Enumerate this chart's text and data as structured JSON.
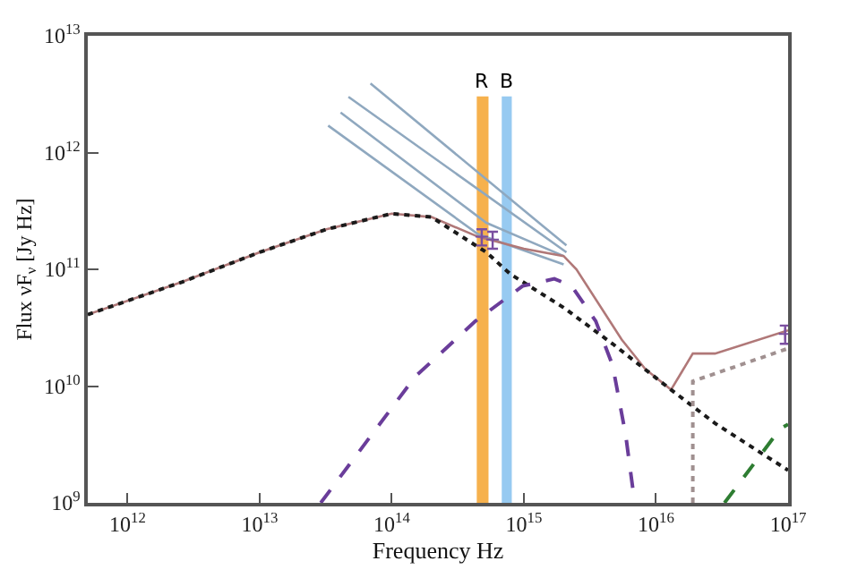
{
  "chart_data": {
    "type": "line",
    "xlabel": "Frequency Hz",
    "ylabel": "Flux νF$_{ν}$ [Jy Hz]",
    "log": "xy",
    "xlim": [
      500000000000.0,
      1e+17
    ],
    "ylim": [
      1000000000.0,
      10000000000000.0
    ],
    "xticks": [
      {
        "value": 1000000000000.0,
        "label": "10$^{12}$"
      },
      {
        "value": 10000000000000.0,
        "label": "10$^{13}$"
      },
      {
        "value": 100000000000000.0,
        "label": "10$^{14}$"
      },
      {
        "value": 1000000000000000.0,
        "label": "10$^{15}$"
      },
      {
        "value": 1e+16,
        "label": "10$^{16}$"
      },
      {
        "value": 1e+17,
        "label": "10$^{17}$"
      }
    ],
    "yticks": [
      {
        "value": 1000000000.0,
        "label": "10$^{9}$"
      },
      {
        "value": 10000000000.0,
        "label": "10$^{10}$"
      },
      {
        "value": 100000000000.0,
        "label": "10$^{11}$"
      },
      {
        "value": 1000000000000.0,
        "label": "10$^{12}$"
      },
      {
        "value": 10000000000000.0,
        "label": "10$^{13}$"
      }
    ],
    "bands": [
      {
        "axis": "x",
        "from": 440000000000000.0,
        "to": 540000000000000.0,
        "label": "R",
        "color": "#f5a83a"
      },
      {
        "axis": "x",
        "from": 680000000000000.0,
        "to": 810000000000000.0,
        "label": "B",
        "color": "#8cc4f0"
      }
    ],
    "series": [
      {
        "color": "#8fa8bf",
        "line_style": "solid",
        "x": [
          69000000000000.0,
          2100000000000000.0
        ],
        "values": [
          3900000000000.0,
          160000000000.0
        ]
      },
      {
        "color": "#8fa8bf",
        "line_style": "solid",
        "x": [
          47000000000000.0,
          2100000000000000.0
        ],
        "values": [
          3000000000000.0,
          140000000000.0
        ]
      },
      {
        "color": "#8fa8bf",
        "line_style": "solid",
        "x": [
          41000000000000.0,
          520000000000000.0,
          2000000000000000.0
        ],
        "values": [
          2200000000000.0,
          250000000000.0,
          130000000000.0
        ]
      },
      {
        "color": "#8fa8bf",
        "line_style": "solid",
        "x": [
          33000000000000.0,
          450000000000000.0,
          2000000000000000.0
        ],
        "values": [
          1700000000000.0,
          200000000000.0,
          110000000000.0
        ]
      },
      {
        "color": "#b07878",
        "line_style": "solid",
        "x": [
          500000000000.0,
          2600000000000.0,
          10000000000000.0,
          32000000000000.0,
          100000000000000.0,
          200000000000000.0,
          450000000000000.0,
          1000000000000000.0,
          2000000000000000.0,
          2500000000000000.0,
          5500000000000000.0,
          8300000000000000.0,
          1.3e+16,
          1.9e+16,
          2.8e+16,
          1e+17
        ],
        "values": [
          41000000000.0,
          78000000000.0,
          140000000000.0,
          220000000000.0,
          300000000000.0,
          280000000000.0,
          190000000000.0,
          150000000000.0,
          130000000000.0,
          100000000000.0,
          25000000000.0,
          14000000000.0,
          9300000000.0,
          19000000000.0,
          19000000000.0,
          30000000000.0
        ]
      },
      {
        "color": "#1a1a1a",
        "line_style": "dotted",
        "x": [
          500000000000.0,
          2600000000000.0,
          10000000000000.0,
          32000000000000.0,
          100000000000000.0,
          200000000000000.0,
          520000000000000.0,
          790000000000000.0,
          2000000000000000.0,
          4700000000000000.0,
          1.3e+16,
          2.8e+16,
          1e+17
        ],
        "values": [
          41000000000.0,
          78000000000.0,
          140000000000.0,
          220000000000.0,
          300000000000.0,
          280000000000.0,
          140000000000.0,
          91000000000.0,
          47000000000.0,
          23000000000.0,
          9300000000.0,
          4800000000.0,
          1900000000.0
        ]
      },
      {
        "color": "#6a3d9a",
        "line_style": "dashed",
        "x": [
          29000000000000.0,
          150000000000000.0,
          430000000000000.0,
          980000000000000.0,
          1700000000000000.0,
          2300000000000000.0,
          3500000000000000.0,
          4700000000000000.0,
          5900000000000000.0,
          6900000000000000.0
        ],
        "values": [
          1000000000.0,
          12000000000.0,
          36000000000.0,
          72000000000.0,
          83000000000.0,
          72000000000.0,
          36000000000.0,
          15000000000.0,
          3800000000.0,
          1000000000.0
        ]
      },
      {
        "color": "#2e7d32",
        "line_style": "dashed",
        "x": [
          3.3e+16,
          8.7e+16,
          1e+17
        ],
        "values": [
          1000000000.0,
          4300000000.0,
          4700000000.0
        ]
      },
      {
        "color": "#a09090",
        "line_style": "dotted",
        "x": [
          1.9e+16,
          1.9e+16,
          1e+17
        ],
        "values": [
          1000000000.0,
          11000000000.0,
          21000000000.0
        ]
      },
      {
        "type": "scatter",
        "marker": "cross",
        "color": "#7b4fa0",
        "x": [
          480000000000000.0,
          580000000000000.0,
          9.5e+16
        ],
        "values": [
          190000000000.0,
          180000000000.0,
          28000000000.0
        ],
        "errors": [
          30000000000.0,
          30000000000.0,
          5000000000.0
        ]
      }
    ]
  }
}
